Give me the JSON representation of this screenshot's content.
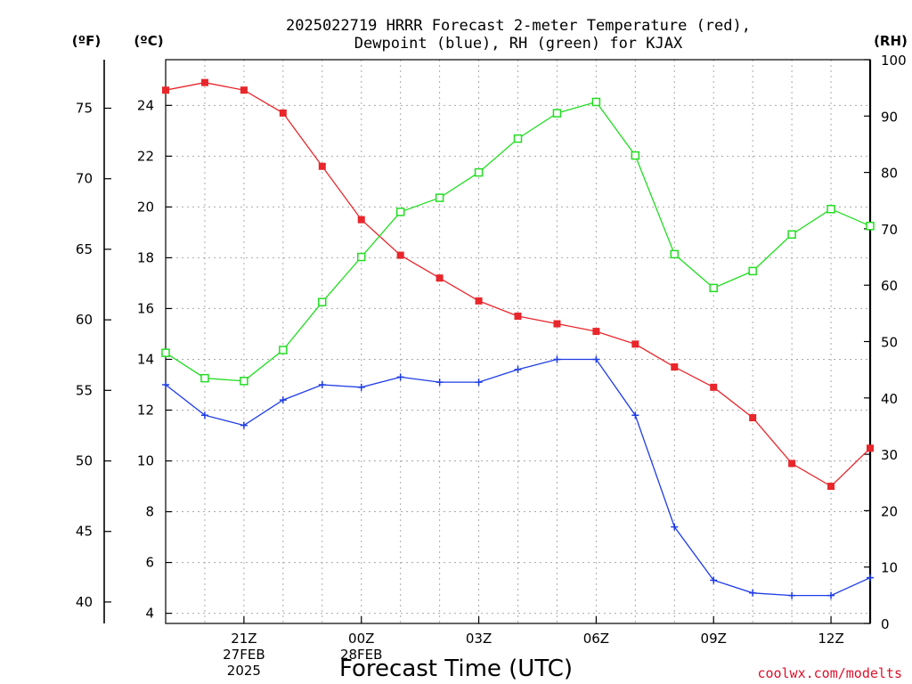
{
  "chart_data": {
    "type": "line",
    "title": [
      "2025022719 HRRR Forecast 2-meter Temperature (red),",
      "Dewpoint (blue), RH (green) for KJAX"
    ],
    "xlabel": "Forecast Time (UTC)",
    "units": {
      "fahrenheit": "(ºF)",
      "celsius": "(ºC)",
      "rh": "(RH)"
    },
    "x": [
      "19Z",
      "20Z",
      "21Z",
      "22Z",
      "23Z",
      "00Z",
      "01Z",
      "02Z",
      "03Z",
      "04Z",
      "05Z",
      "06Z",
      "07Z",
      "08Z",
      "09Z",
      "10Z",
      "11Z",
      "12Z",
      "13Z"
    ],
    "x_tick_labels": [
      {
        "index": 2,
        "lines": [
          "21Z",
          "27FEB",
          "2025"
        ]
      },
      {
        "index": 5,
        "lines": [
          "00Z",
          "28FEB"
        ]
      },
      {
        "index": 8,
        "lines": [
          "03Z"
        ]
      },
      {
        "index": 11,
        "lines": [
          "06Z"
        ]
      },
      {
        "index": 14,
        "lines": [
          "09Z"
        ]
      },
      {
        "index": 17,
        "lines": [
          "12Z"
        ]
      }
    ],
    "celsius_axis": {
      "ylim": [
        3.6,
        25.8
      ],
      "ticks": [
        4,
        6,
        8,
        10,
        12,
        14,
        16,
        18,
        20,
        22,
        24
      ]
    },
    "fahrenheit_axis": {
      "ticks": [
        40,
        45,
        50,
        55,
        60,
        65,
        70,
        75
      ]
    },
    "rh_axis": {
      "ylim": [
        0,
        100
      ],
      "ticks": [
        0,
        10,
        20,
        30,
        40,
        50,
        60,
        70,
        80,
        90,
        100
      ]
    },
    "grid": true,
    "series": [
      {
        "axis": "celsius",
        "color": "#e8262b",
        "marker": "filled-square",
        "values": [
          24.6,
          24.9,
          24.6,
          23.7,
          21.6,
          19.5,
          18.1,
          17.2,
          16.3,
          15.7,
          15.4,
          15.1,
          14.6,
          13.7,
          12.9,
          11.7,
          9.9,
          9.0,
          10.5
        ]
      },
      {
        "axis": "celsius",
        "color": "#1e3ce6",
        "marker": "plus",
        "values": [
          13.0,
          11.8,
          11.4,
          12.4,
          13.0,
          12.9,
          13.3,
          13.1,
          13.1,
          13.6,
          14.0,
          14.0,
          11.8,
          7.4,
          5.3,
          4.8,
          4.7,
          4.7,
          5.4
        ]
      },
      {
        "axis": "rh",
        "color": "#22dd22",
        "marker": "open-square",
        "values": [
          48,
          43.5,
          43,
          48.5,
          57,
          65,
          73,
          75.5,
          80,
          86,
          90.5,
          92.5,
          83,
          65.5,
          59.5,
          62.5,
          69,
          73.5,
          70.5
        ]
      }
    ]
  },
  "credit": "coolwx.com/modelts"
}
